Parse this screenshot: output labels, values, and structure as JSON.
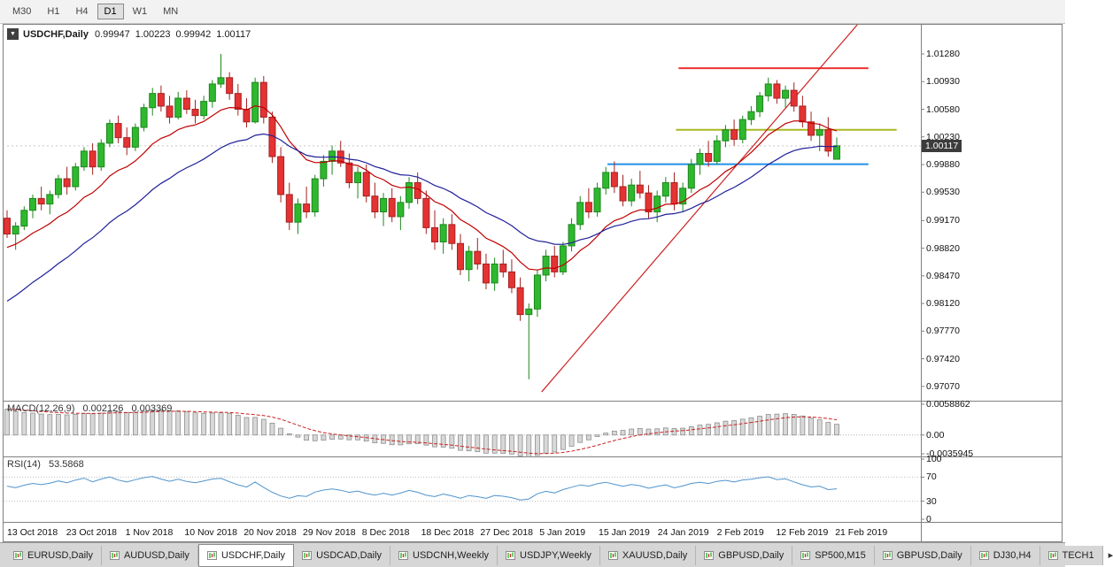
{
  "icons": {
    "dropdown": "▼"
  },
  "toolbar": {
    "timeframes": [
      "M30",
      "H1",
      "H4",
      "D1",
      "W1",
      "MN"
    ],
    "active": "D1"
  },
  "chart_header": {
    "symbol": "USDCHF,Daily",
    "open": "0.99947",
    "high": "1.00223",
    "low": "0.99942",
    "close": "1.00117"
  },
  "price_axis": [
    "1.01280",
    "1.00930",
    "1.00580",
    "1.00230",
    "0.99880",
    "0.99530",
    "0.99170",
    "0.98820",
    "0.98470",
    "0.98120",
    "0.97770",
    "0.97420",
    "0.97070"
  ],
  "price_tag": "1.00117",
  "macd_panel": {
    "label": "MACD(12,26,9)",
    "value_main": "0.002126",
    "value_signal": "0.003369",
    "axis": [
      "0.0058862",
      "0.00",
      "-0.0035945"
    ]
  },
  "rsi_panel": {
    "label": "RSI(14)",
    "value": "53.5868",
    "axis": [
      "100",
      "70",
      "30",
      "0"
    ]
  },
  "date_axis": [
    "13 Oct 2018",
    "23 Oct 2018",
    "1 Nov 2018",
    "10 Nov 2018",
    "20 Nov 2018",
    "29 Nov 2018",
    "8 Dec 2018",
    "18 Dec 2018",
    "27 Dec 2018",
    "5 Jan 2019",
    "15 Jan 2019",
    "24 Jan 2019",
    "2 Feb 2019",
    "12 Feb 2019",
    "21 Feb 2019"
  ],
  "tabs": {
    "scroll_icon": "▸",
    "items": [
      {
        "label": "EURUSD,Daily",
        "active": false
      },
      {
        "label": "AUDUSD,Daily",
        "active": false
      },
      {
        "label": "USDCHF,Daily",
        "active": true
      },
      {
        "label": "USDCAD,Daily",
        "active": false
      },
      {
        "label": "USDCNH,Weekly",
        "active": false
      },
      {
        "label": "USDJPY,Weekly",
        "active": false
      },
      {
        "label": "XAUUSD,Daily",
        "active": false
      },
      {
        "label": "GBPUSD,Daily",
        "active": false
      },
      {
        "label": "SP500,M15",
        "active": false
      },
      {
        "label": "GBPUSD,Daily",
        "active": false
      },
      {
        "label": "DJ30,H4",
        "active": false
      },
      {
        "label": "TECH1",
        "active": false
      }
    ]
  },
  "chart_data": {
    "type": "candlestick",
    "symbol": "USDCHF",
    "timeframe": "Daily",
    "y_range": [
      0.969,
      1.0165
    ],
    "current_ohlc": {
      "open": 0.99947,
      "high": 1.00223,
      "low": 0.99942,
      "close": 1.00117
    },
    "candles": [
      [
        0.992,
        0.993,
        0.9895,
        0.99
      ],
      [
        0.99,
        0.9915,
        0.988,
        0.991
      ],
      [
        0.991,
        0.9935,
        0.9905,
        0.993
      ],
      [
        0.993,
        0.995,
        0.992,
        0.9945
      ],
      [
        0.9945,
        0.996,
        0.993,
        0.9938
      ],
      [
        0.9938,
        0.9955,
        0.9925,
        0.995
      ],
      [
        0.995,
        0.9975,
        0.9945,
        0.997
      ],
      [
        0.997,
        0.9985,
        0.995,
        0.996
      ],
      [
        0.996,
        0.999,
        0.9955,
        0.9985
      ],
      [
        0.9985,
        1.001,
        0.998,
        1.0005
      ],
      [
        1.0005,
        1.0015,
        0.9975,
        0.9985
      ],
      [
        0.9985,
        1.002,
        0.998,
        1.0015
      ],
      [
        1.0015,
        1.0045,
        1.001,
        1.004
      ],
      [
        1.004,
        1.005,
        1.0015,
        1.0022
      ],
      [
        1.0022,
        1.0035,
        1.0,
        1.001
      ],
      [
        1.001,
        1.004,
        1.0005,
        1.0035
      ],
      [
        1.0035,
        1.0065,
        1.003,
        1.006
      ],
      [
        1.006,
        1.0085,
        1.005,
        1.0078
      ],
      [
        1.0078,
        1.0088,
        1.0055,
        1.0062
      ],
      [
        1.0062,
        1.0075,
        1.004,
        1.0048
      ],
      [
        1.0048,
        1.008,
        1.0045,
        1.0072
      ],
      [
        1.0072,
        1.0082,
        1.0052,
        1.0058
      ],
      [
        1.0058,
        1.007,
        1.004,
        1.005
      ],
      [
        1.005,
        1.0075,
        1.0045,
        1.0068
      ],
      [
        1.0068,
        1.0095,
        1.006,
        1.009
      ],
      [
        1.009,
        1.0128,
        1.0085,
        1.0098
      ],
      [
        1.0098,
        1.0105,
        1.007,
        1.0078
      ],
      [
        1.0078,
        1.009,
        1.005,
        1.0058
      ],
      [
        1.0058,
        1.0072,
        1.0035,
        1.0042
      ],
      [
        1.0042,
        1.0098,
        1.004,
        1.0092
      ],
      [
        1.0092,
        1.01,
        1.004,
        1.0048
      ],
      [
        1.0048,
        1.0055,
        0.999,
        0.9998
      ],
      [
        0.9998,
        1.001,
        0.994,
        0.995
      ],
      [
        0.995,
        0.9965,
        0.9905,
        0.9915
      ],
      [
        0.9915,
        0.9945,
        0.99,
        0.9938
      ],
      [
        0.9938,
        0.996,
        0.992,
        0.9928
      ],
      [
        0.9928,
        0.9975,
        0.9922,
        0.997
      ],
      [
        0.997,
        1.0,
        0.996,
        0.9992
      ],
      [
        0.9992,
        1.0012,
        0.9975,
        1.0005
      ],
      [
        1.0005,
        1.0018,
        0.9985,
        0.999
      ],
      [
        0.999,
        1.0002,
        0.9958,
        0.9965
      ],
      [
        0.9965,
        0.9985,
        0.9945,
        0.9978
      ],
      [
        0.9978,
        0.9988,
        0.994,
        0.9948
      ],
      [
        0.9948,
        0.9965,
        0.992,
        0.9928
      ],
      [
        0.9928,
        0.9952,
        0.991,
        0.9945
      ],
      [
        0.9945,
        0.9958,
        0.9915,
        0.9922
      ],
      [
        0.9922,
        0.9948,
        0.9905,
        0.994
      ],
      [
        0.994,
        0.9972,
        0.9932,
        0.9965
      ],
      [
        0.9965,
        0.9978,
        0.9938,
        0.9945
      ],
      [
        0.9945,
        0.9955,
        0.99,
        0.9908
      ],
      [
        0.9908,
        0.993,
        0.988,
        0.989
      ],
      [
        0.989,
        0.992,
        0.9875,
        0.9912
      ],
      [
        0.9912,
        0.9925,
        0.988,
        0.9888
      ],
      [
        0.9888,
        0.99,
        0.9848,
        0.9855
      ],
      [
        0.9855,
        0.9885,
        0.984,
        0.9878
      ],
      [
        0.9878,
        0.9895,
        0.9855,
        0.9862
      ],
      [
        0.9862,
        0.9875,
        0.983,
        0.9838
      ],
      [
        0.9838,
        0.987,
        0.9828,
        0.9862
      ],
      [
        0.9862,
        0.988,
        0.9845,
        0.9852
      ],
      [
        0.9852,
        0.9868,
        0.9825,
        0.9832
      ],
      [
        0.9832,
        0.9845,
        0.979,
        0.9798
      ],
      [
        0.9798,
        0.9812,
        0.9716,
        0.9805
      ],
      [
        0.9805,
        0.9855,
        0.9795,
        0.9848
      ],
      [
        0.9848,
        0.988,
        0.984,
        0.9872
      ],
      [
        0.9872,
        0.9885,
        0.9845,
        0.9852
      ],
      [
        0.9852,
        0.989,
        0.9848,
        0.9885
      ],
      [
        0.9885,
        0.992,
        0.9878,
        0.9912
      ],
      [
        0.9912,
        0.9948,
        0.9905,
        0.994
      ],
      [
        0.994,
        0.9958,
        0.992,
        0.9928
      ],
      [
        0.9928,
        0.9965,
        0.9922,
        0.9958
      ],
      [
        0.9958,
        0.9985,
        0.995,
        0.9978
      ],
      [
        0.9978,
        0.9992,
        0.9952,
        0.996
      ],
      [
        0.996,
        0.9975,
        0.9935,
        0.9942
      ],
      [
        0.9942,
        0.997,
        0.9935,
        0.9962
      ],
      [
        0.9962,
        0.998,
        0.9945,
        0.9952
      ],
      [
        0.9952,
        0.9962,
        0.992,
        0.9928
      ],
      [
        0.9928,
        0.9955,
        0.9915,
        0.9948
      ],
      [
        0.9948,
        0.9972,
        0.994,
        0.9965
      ],
      [
        0.9965,
        0.9978,
        0.993,
        0.9938
      ],
      [
        0.9938,
        0.9965,
        0.9928,
        0.9958
      ],
      [
        0.9958,
        0.9995,
        0.9952,
        0.9988
      ],
      [
        0.9988,
        1.0008,
        0.9975,
        1.0002
      ],
      [
        1.0002,
        1.0018,
        0.9985,
        0.9992
      ],
      [
        0.9992,
        1.0025,
        0.9988,
        1.0018
      ],
      [
        1.0018,
        1.0038,
        1.001,
        1.0032
      ],
      [
        1.0032,
        1.0045,
        1.0012,
        1.002
      ],
      [
        1.002,
        1.005,
        1.0015,
        1.0045
      ],
      [
        1.0045,
        1.0062,
        1.0038,
        1.0055
      ],
      [
        1.0055,
        1.008,
        1.0048,
        1.0075
      ],
      [
        1.0075,
        1.0098,
        1.0068,
        1.009
      ],
      [
        1.009,
        1.0095,
        1.0065,
        1.0072
      ],
      [
        1.0072,
        1.0088,
        1.006,
        1.0082
      ],
      [
        1.0082,
        1.0092,
        1.0055,
        1.0062
      ],
      [
        1.0062,
        1.0075,
        1.0035,
        1.0042
      ],
      [
        1.0042,
        1.0055,
        1.0018,
        1.0025
      ],
      [
        1.0025,
        1.004,
        1.0005,
        1.0032
      ],
      [
        1.0032,
        1.0048,
        0.9998,
        1.0005
      ],
      [
        0.99947,
        1.00223,
        0.99942,
        1.00117
      ]
    ],
    "overlays": {
      "ma_fast": {
        "color": "#c00000",
        "alpha": 0.15,
        "seed": 0.988
      },
      "ma_slow": {
        "color": "#20209a",
        "alpha": 0.075,
        "seed": 0.9808
      },
      "hlines": [
        {
          "price": 1.011,
          "from_bar": 78.5,
          "to_bar": 100.7,
          "color": "#ee3333",
          "width": 2
        },
        {
          "price": 1.0032,
          "from_bar": 78.2,
          "to_bar": 104.0,
          "color": "#a8b820",
          "width": 2
        },
        {
          "price": 0.99884,
          "from_bar": 70.2,
          "to_bar": 100.7,
          "color": "#2090e8",
          "width": 2
        },
        {
          "price": 1.00117,
          "from_bar": 0,
          "to_bar": 107,
          "color": "#c8c8c8",
          "width": 1,
          "dash": "2,3"
        }
      ],
      "trendline": {
        "from_bar": 62.5,
        "from_price": 0.97,
        "to_bar": 99.4,
        "to_price": 1.0165,
        "color": "#cc2222",
        "width": 1.2
      }
    },
    "macd": {
      "ema_fast": 12,
      "ema_slow": 26,
      "signal": 9,
      "y_range": [
        -0.0035945,
        0.0058862
      ],
      "hist_color": "#d8d8d8",
      "hist_stroke": "#8f8f8f",
      "signal_color": "#cc2222",
      "current_main": 0.002126,
      "current_signal": 0.003369
    },
    "rsi": {
      "period": 14,
      "levels": [
        70,
        30
      ],
      "color": "#4f94cd",
      "y_range": [
        0,
        100
      ],
      "current": 53.5868
    }
  }
}
